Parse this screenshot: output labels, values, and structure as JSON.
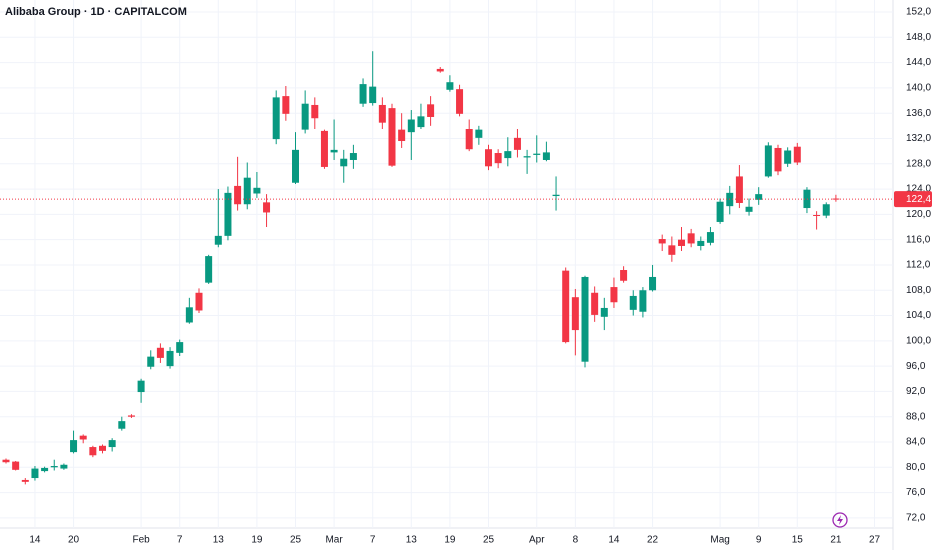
{
  "chart_data": {
    "type": "candlestick",
    "title": "Alibaba Group · 1D · CAPITALCOM",
    "categories": [
      null,
      null,
      null,
      "14",
      null,
      null,
      null,
      "20",
      null,
      null,
      null,
      null,
      null,
      null,
      "Feb",
      null,
      null,
      null,
      "7",
      null,
      null,
      null,
      "13",
      null,
      null,
      null,
      "19",
      null,
      null,
      null,
      "25",
      null,
      null,
      null,
      "Mar",
      null,
      null,
      null,
      "7",
      null,
      null,
      null,
      "13",
      null,
      null,
      null,
      "19",
      null,
      null,
      null,
      "25",
      null,
      null,
      null,
      null,
      "Apr",
      null,
      null,
      null,
      "8",
      null,
      null,
      null,
      "14",
      null,
      null,
      null,
      "22",
      null,
      null,
      null,
      null,
      null,
      null,
      "Mag",
      null,
      null,
      null,
      "9",
      null,
      null,
      null,
      "15",
      null,
      null,
      null,
      "21",
      null,
      null,
      null,
      "27"
    ],
    "open": [
      81.2,
      80.9,
      78.0,
      78.3,
      79.4,
      80.0,
      79.8,
      82.4,
      85.0,
      83.2,
      83.4,
      83.2,
      86.1,
      88.2,
      91.9,
      95.9,
      98.9,
      96.0,
      98.1,
      102.9,
      107.6,
      109.2,
      115.2,
      116.6,
      124.5,
      121.6,
      123.3,
      121.9,
      131.9,
      138.7,
      125.0,
      133.4,
      137.3,
      133.2,
      129.8,
      127.6,
      128.6,
      137.5,
      137.6,
      137.3,
      136.8,
      133.4,
      133.0,
      133.8,
      137.4,
      143.0,
      139.7,
      139.8,
      133.5,
      132.1,
      130.3,
      129.7,
      128.9,
      132.1,
      129.0,
      129.4,
      128.6,
      122.9,
      111.1,
      106.9,
      96.7,
      107.6,
      103.8,
      108.5,
      111.2,
      104.9,
      104.6,
      108.0,
      116.1,
      115.1,
      116.0,
      117.0,
      115.0,
      115.5,
      118.8,
      121.3,
      126.0,
      120.4,
      122.3,
      126.0,
      130.5,
      128.0,
      130.7,
      121.0,
      119.9,
      119.8,
      122.5,
      null,
      null,
      null,
      null
    ],
    "high": [
      81.4,
      81.0,
      78.3,
      80.2,
      80.1,
      81.2,
      80.6,
      85.8,
      85.2,
      83.4,
      83.6,
      84.6,
      88.0,
      88.4,
      94.0,
      98.5,
      99.6,
      99.0,
      100.2,
      106.8,
      108.3,
      113.6,
      124.0,
      124.4,
      129.1,
      128.2,
      126.7,
      123.2,
      139.6,
      140.3,
      133.0,
      139.6,
      138.5,
      133.4,
      135.0,
      130.2,
      131.0,
      141.5,
      145.8,
      138.5,
      137.5,
      136.0,
      136.5,
      137.5,
      138.7,
      143.3,
      142.0,
      140.5,
      135.0,
      134.0,
      131.0,
      130.3,
      132.2,
      133.5,
      130.2,
      132.5,
      131.5,
      126.0,
      111.6,
      108.2,
      110.3,
      108.6,
      106.8,
      110.0,
      111.8,
      108.0,
      108.5,
      112.0,
      116.8,
      116.5,
      118.0,
      117.7,
      116.5,
      118.0,
      122.5,
      124.5,
      127.8,
      122.5,
      124.3,
      131.4,
      131.0,
      130.6,
      131.3,
      124.3,
      120.5,
      121.9,
      123.1,
      null,
      null,
      null,
      null
    ],
    "low": [
      80.6,
      79.5,
      77.3,
      77.9,
      79.2,
      79.5,
      79.6,
      82.2,
      83.8,
      81.6,
      82.2,
      82.5,
      85.8,
      87.8,
      90.2,
      95.5,
      96.5,
      95.6,
      97.6,
      102.7,
      104.4,
      109.0,
      114.8,
      115.9,
      120.6,
      120.8,
      122.6,
      118.0,
      131.1,
      134.8,
      124.8,
      132.8,
      133.5,
      127.2,
      128.6,
      125.0,
      127.2,
      137.0,
      137.2,
      133.5,
      127.5,
      130.5,
      128.6,
      133.5,
      134.0,
      142.4,
      139.4,
      135.5,
      130.0,
      131.0,
      127.0,
      127.3,
      127.6,
      129.0,
      126.4,
      128.2,
      128.4,
      120.6,
      99.6,
      97.7,
      95.8,
      103.0,
      101.7,
      105.2,
      109.2,
      104.0,
      103.7,
      107.8,
      114.2,
      112.5,
      114.2,
      114.8,
      114.3,
      115.1,
      118.5,
      120.0,
      121.0,
      119.8,
      121.5,
      125.8,
      126.2,
      127.5,
      127.8,
      120.2,
      117.6,
      119.4,
      122.0,
      null,
      null,
      null,
      null
    ],
    "close": [
      80.8,
      79.6,
      77.7,
      79.8,
      79.9,
      80.2,
      80.4,
      84.3,
      84.4,
      81.9,
      82.6,
      84.3,
      87.3,
      88.0,
      93.7,
      97.5,
      97.3,
      98.4,
      99.8,
      105.3,
      104.8,
      113.4,
      116.6,
      123.4,
      121.6,
      125.8,
      124.2,
      120.3,
      138.5,
      135.9,
      130.2,
      137.5,
      135.2,
      127.5,
      130.2,
      128.8,
      129.7,
      140.6,
      140.2,
      134.5,
      127.7,
      131.6,
      135.0,
      135.5,
      135.4,
      142.6,
      140.9,
      135.9,
      130.3,
      133.4,
      127.6,
      128.1,
      130.0,
      130.2,
      129.2,
      129.6,
      129.8,
      123.1,
      99.8,
      101.7,
      110.1,
      104.1,
      105.2,
      106.1,
      109.5,
      107.1,
      108.0,
      110.1,
      115.4,
      113.6,
      115.0,
      115.4,
      115.8,
      117.2,
      122.0,
      123.4,
      121.8,
      121.2,
      123.2,
      130.9,
      126.8,
      130.1,
      128.2,
      123.9,
      119.8,
      121.6,
      122.4,
      null,
      null,
      null,
      null
    ],
    "up_color": "#089981",
    "down_color": "#f23645",
    "ylim": [
      70.4,
      153.9
    ],
    "yticks": [
      {
        "value": 72,
        "label": "72,0"
      },
      {
        "value": 76,
        "label": "76,0"
      },
      {
        "value": 80,
        "label": "80,0"
      },
      {
        "value": 84,
        "label": "84,0"
      },
      {
        "value": 88,
        "label": "88,0"
      },
      {
        "value": 92,
        "label": "92,0"
      },
      {
        "value": 96,
        "label": "96,0"
      },
      {
        "value": 100,
        "label": "100,0"
      },
      {
        "value": 104,
        "label": "104,0"
      },
      {
        "value": 108,
        "label": "108,0"
      },
      {
        "value": 112,
        "label": "112,0"
      },
      {
        "value": 116,
        "label": "116,0"
      },
      {
        "value": 120,
        "label": "120,0"
      },
      {
        "value": 124,
        "label": "124,0"
      },
      {
        "value": 128,
        "label": "128,0"
      },
      {
        "value": 132,
        "label": "132,0"
      },
      {
        "value": 136,
        "label": "136,0"
      },
      {
        "value": 140,
        "label": "140,0"
      },
      {
        "value": 144,
        "label": "144,0"
      },
      {
        "value": 148,
        "label": "148,0"
      },
      {
        "value": 152,
        "label": "152,0"
      }
    ],
    "last_price": {
      "value": 122.4,
      "label": "122,4",
      "color": "#f23645"
    },
    "grid": true
  }
}
